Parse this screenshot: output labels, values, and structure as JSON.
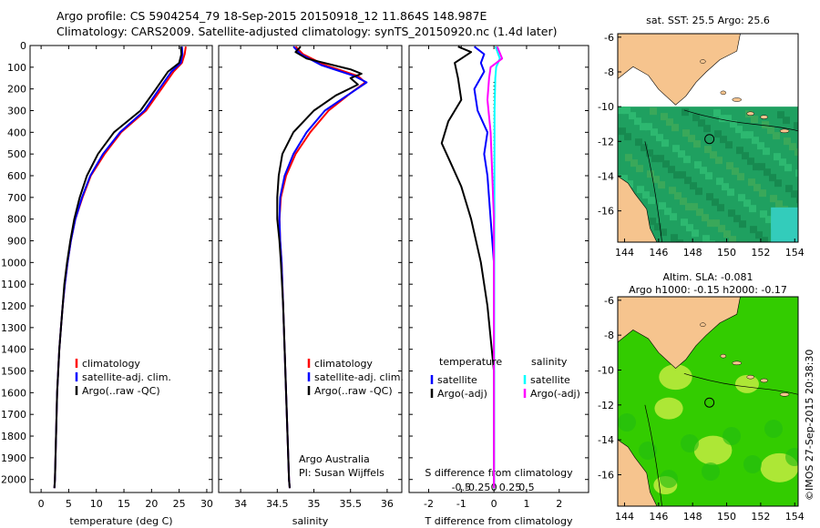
{
  "header": {
    "line1": "Argo profile: CS 5904254_79 18-Sep-2015 20150918_12 11.864S 148.987E",
    "line2": "Climatology: CARS2009. Satellite-adjusted climatology: synTS_20150920.nc (1.4d later)"
  },
  "colors": {
    "climatology": "#ff0000",
    "satellite": "#0000ff",
    "argo": "#000000",
    "sat_salinity": "#00ffff",
    "argo_salinity": "#ff00ff",
    "land": "#f6c48e",
    "sea_sst": "#1fa060",
    "sea_sla": "#33cc00"
  },
  "depth_axis": {
    "ticks": [
      0,
      100,
      200,
      300,
      400,
      500,
      600,
      700,
      800,
      900,
      1000,
      1100,
      1200,
      1300,
      1400,
      1500,
      1600,
      1700,
      1800,
      1900,
      2000
    ],
    "ylim": [
      0,
      2060
    ]
  },
  "chart_data": [
    {
      "type": "line",
      "id": "temperature",
      "xlabel": "temperature (deg C)",
      "xlim": [
        -2,
        31
      ],
      "xticks": [
        0,
        5,
        10,
        15,
        20,
        25,
        30
      ],
      "legend": [
        "climatology",
        "satellite-adj. clim.",
        "Argo(..raw -QC)"
      ],
      "series": [
        {
          "name": "climatology",
          "color": "#ff0000",
          "points": [
            [
              26.2,
              5
            ],
            [
              26.0,
              40
            ],
            [
              25.5,
              80
            ],
            [
              24.0,
              120
            ],
            [
              21.8,
              200
            ],
            [
              19.0,
              300
            ],
            [
              14.5,
              400
            ],
            [
              11.5,
              500
            ],
            [
              9.0,
              600
            ],
            [
              7.5,
              700
            ],
            [
              6.2,
              800
            ],
            [
              5.4,
              900
            ],
            [
              4.8,
              1000
            ],
            [
              4.3,
              1100
            ],
            [
              3.9,
              1200
            ],
            [
              3.6,
              1300
            ],
            [
              3.3,
              1400
            ],
            [
              3.1,
              1500
            ],
            [
              2.9,
              1600
            ],
            [
              2.8,
              1700
            ],
            [
              2.7,
              1800
            ],
            [
              2.6,
              1900
            ],
            [
              2.5,
              2000
            ],
            [
              2.4,
              2040
            ]
          ]
        },
        {
          "name": "satellite-adj. clim.",
          "color": "#0000ff",
          "points": [
            [
              25.5,
              5
            ],
            [
              25.6,
              40
            ],
            [
              25.3,
              80
            ],
            [
              23.6,
              120
            ],
            [
              21.4,
              200
            ],
            [
              18.7,
              300
            ],
            [
              14.3,
              400
            ],
            [
              11.2,
              500
            ],
            [
              8.9,
              600
            ],
            [
              7.4,
              700
            ],
            [
              6.2,
              800
            ],
            [
              5.4,
              900
            ],
            [
              4.8,
              1000
            ],
            [
              4.3,
              1100
            ],
            [
              3.9,
              1200
            ],
            [
              3.6,
              1300
            ],
            [
              3.3,
              1400
            ],
            [
              3.1,
              1500
            ],
            [
              2.9,
              1600
            ],
            [
              2.8,
              1700
            ],
            [
              2.7,
              1800
            ],
            [
              2.6,
              1900
            ],
            [
              2.5,
              2000
            ],
            [
              2.4,
              2040
            ]
          ]
        },
        {
          "name": "Argo(..raw -QC)",
          "color": "#000000",
          "points": [
            [
              25.3,
              5
            ],
            [
              25.4,
              40
            ],
            [
              25.0,
              80
            ],
            [
              23.0,
              120
            ],
            [
              20.8,
              200
            ],
            [
              18.0,
              300
            ],
            [
              13.2,
              400
            ],
            [
              10.3,
              500
            ],
            [
              8.3,
              600
            ],
            [
              7.0,
              700
            ],
            [
              6.0,
              800
            ],
            [
              5.3,
              900
            ],
            [
              4.7,
              1000
            ],
            [
              4.2,
              1100
            ],
            [
              3.9,
              1200
            ],
            [
              3.6,
              1300
            ],
            [
              3.3,
              1400
            ],
            [
              3.1,
              1500
            ],
            [
              2.9,
              1600
            ],
            [
              2.8,
              1700
            ],
            [
              2.7,
              1800
            ],
            [
              2.6,
              1900
            ],
            [
              2.5,
              2000
            ],
            [
              2.4,
              2040
            ]
          ]
        }
      ]
    },
    {
      "type": "line",
      "id": "salinity",
      "xlabel": "salinity",
      "xlim": [
        33.7,
        36.2
      ],
      "xticks": [
        34,
        34.5,
        35,
        35.5,
        36
      ],
      "legend": [
        "climatology",
        "satellite-adj. clim.",
        "Argo(..raw -QC)"
      ],
      "annotation": [
        "Argo Australia",
        "PI: Susan Wijffels"
      ],
      "series": [
        {
          "name": "climatology",
          "color": "#ff0000",
          "points": [
            [
              34.75,
              5
            ],
            [
              34.85,
              40
            ],
            [
              35.15,
              90
            ],
            [
              35.6,
              140
            ],
            [
              35.7,
              170
            ],
            [
              35.5,
              220
            ],
            [
              35.2,
              300
            ],
            [
              34.95,
              400
            ],
            [
              34.75,
              500
            ],
            [
              34.62,
              600
            ],
            [
              34.55,
              700
            ],
            [
              34.53,
              800
            ],
            [
              34.54,
              900
            ],
            [
              34.56,
              1000
            ],
            [
              34.58,
              1200
            ],
            [
              34.6,
              1400
            ],
            [
              34.62,
              1600
            ],
            [
              34.64,
              1800
            ],
            [
              34.66,
              2000
            ],
            [
              34.67,
              2040
            ]
          ]
        },
        {
          "name": "satellite-adj. clim.",
          "color": "#0000ff",
          "points": [
            [
              34.72,
              5
            ],
            [
              34.82,
              40
            ],
            [
              35.1,
              90
            ],
            [
              35.55,
              140
            ],
            [
              35.72,
              170
            ],
            [
              35.5,
              220
            ],
            [
              35.15,
              300
            ],
            [
              34.9,
              400
            ],
            [
              34.72,
              500
            ],
            [
              34.6,
              600
            ],
            [
              34.54,
              700
            ],
            [
              34.53,
              800
            ],
            [
              34.54,
              900
            ],
            [
              34.56,
              1000
            ],
            [
              34.58,
              1200
            ],
            [
              34.6,
              1400
            ],
            [
              34.62,
              1600
            ],
            [
              34.64,
              1800
            ],
            [
              34.66,
              2000
            ],
            [
              34.67,
              2040
            ]
          ]
        },
        {
          "name": "Argo(..raw -QC)",
          "color": "#000000",
          "points": [
            [
              34.82,
              5
            ],
            [
              34.75,
              30
            ],
            [
              34.9,
              60
            ],
            [
              35.5,
              110
            ],
            [
              35.65,
              130
            ],
            [
              35.5,
              150
            ],
            [
              35.6,
              180
            ],
            [
              35.3,
              230
            ],
            [
              35.0,
              300
            ],
            [
              34.72,
              400
            ],
            [
              34.57,
              500
            ],
            [
              34.52,
              600
            ],
            [
              34.5,
              700
            ],
            [
              34.5,
              800
            ],
            [
              34.53,
              900
            ],
            [
              34.55,
              1000
            ],
            [
              34.58,
              1200
            ],
            [
              34.6,
              1400
            ],
            [
              34.62,
              1600
            ],
            [
              34.64,
              1800
            ],
            [
              34.66,
              2000
            ],
            [
              34.67,
              2040
            ]
          ]
        }
      ]
    },
    {
      "type": "line",
      "id": "difference",
      "xlabel": "T difference from climatology",
      "xlabel_top": "S difference from climatology",
      "xlim": [
        -2.6,
        2.9
      ],
      "xticks": [
        -2,
        -1,
        0,
        1,
        2
      ],
      "xticks_s": [
        "-0.5",
        "-0.25",
        "0",
        "0.25",
        "0.5"
      ],
      "legend_t": {
        "title": "temperature",
        "items": [
          "satellite",
          "Argo(-adj)"
        ]
      },
      "legend_s": {
        "title": "salinity",
        "items": [
          "satellite",
          "Argo(-adj)"
        ]
      },
      "series": [
        {
          "name": "temperature satellite",
          "color": "#0000ff",
          "points": [
            [
              -0.6,
              5
            ],
            [
              -0.3,
              40
            ],
            [
              -0.4,
              80
            ],
            [
              -0.3,
              120
            ],
            [
              -0.6,
              200
            ],
            [
              -0.5,
              300
            ],
            [
              -0.2,
              400
            ],
            [
              -0.3,
              500
            ],
            [
              -0.2,
              600
            ],
            [
              -0.1,
              800
            ],
            [
              0,
              1000
            ],
            [
              0,
              1500
            ],
            [
              0,
              2040
            ]
          ]
        },
        {
          "name": "temperature Argo(-adj)",
          "color": "#000000",
          "points": [
            [
              -1.1,
              5
            ],
            [
              -0.7,
              30
            ],
            [
              -1.2,
              80
            ],
            [
              -1.1,
              150
            ],
            [
              -1.0,
              250
            ],
            [
              -1.4,
              350
            ],
            [
              -1.6,
              450
            ],
            [
              -1.3,
              550
            ],
            [
              -1.0,
              650
            ],
            [
              -0.7,
              800
            ],
            [
              -0.4,
              1000
            ],
            [
              -0.2,
              1200
            ],
            [
              0,
              1500
            ],
            [
              0,
              2040
            ]
          ]
        },
        {
          "name": "salinity satellite",
          "color": "#00ffff",
          "points": [
            [
              0.05,
              5
            ],
            [
              0.18,
              60
            ],
            [
              0.07,
              100
            ],
            [
              0.04,
              150
            ],
            [
              0.02,
              300
            ],
            [
              0.01,
              1000
            ],
            [
              0,
              2040
            ]
          ]
        },
        {
          "name": "salinity Argo(-adj)",
          "color": "#ff00ff",
          "points": [
            [
              0.1,
              5
            ],
            [
              0.25,
              60
            ],
            [
              -0.1,
              100
            ],
            [
              -0.15,
              150
            ],
            [
              -0.2,
              250
            ],
            [
              -0.1,
              400
            ],
            [
              -0.05,
              600
            ],
            [
              0,
              800
            ],
            [
              0,
              2040
            ]
          ]
        }
      ]
    },
    {
      "type": "heatmap",
      "id": "sst_map",
      "title": "sat. SST: 25.5 Argo: 25.6",
      "xlim": [
        143.6,
        154.2
      ],
      "ylim": [
        -17.8,
        -5.8
      ],
      "xticks": [
        144,
        146,
        148,
        150,
        152,
        154
      ],
      "yticks": [
        -6,
        -8,
        -10,
        -12,
        -14,
        -16
      ],
      "marker": {
        "lon": 148.987,
        "lat": -11.864
      }
    },
    {
      "type": "heatmap",
      "id": "sla_map",
      "title": "Altim. SLA: -0.081",
      "subtitle": "Argo h1000: -0.15 h2000: -0.17",
      "xlim": [
        143.6,
        154.2
      ],
      "ylim": [
        -17.8,
        -5.8
      ],
      "xticks": [
        144,
        146,
        148,
        150,
        152,
        154
      ],
      "yticks": [
        -6,
        -8,
        -10,
        -12,
        -14,
        -16
      ],
      "marker": {
        "lon": 148.987,
        "lat": -11.864
      }
    }
  ],
  "stamp": "©IMOS 27-Sep-2015 20:38:30"
}
